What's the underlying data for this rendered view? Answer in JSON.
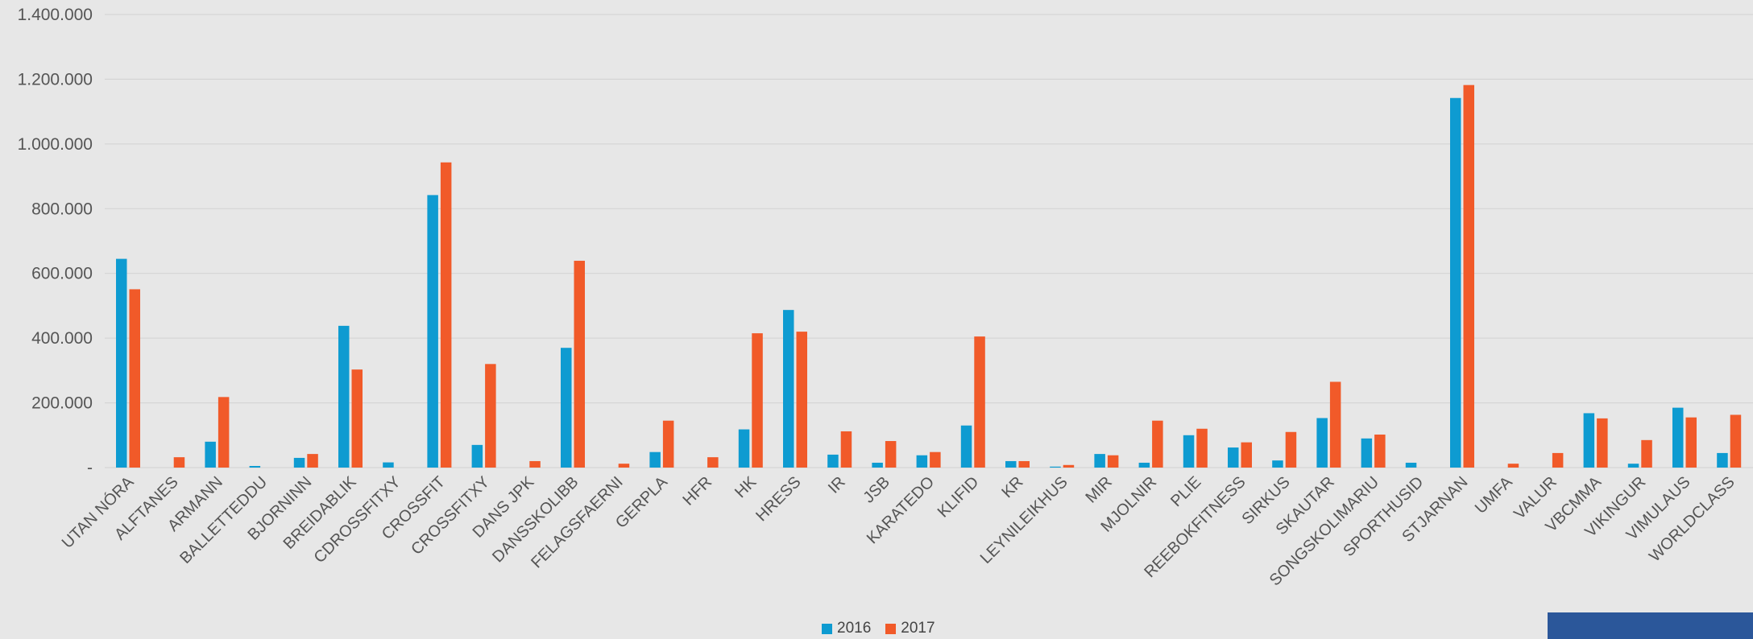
{
  "colors": {
    "background": "#e7e7e7",
    "series_2016": "#0e9bd1",
    "series_2017": "#f15a29",
    "gridline": "#d2d2d2",
    "text": "#555555",
    "corner_box": "#2b579a"
  },
  "chart_data": {
    "type": "bar",
    "title": "",
    "xlabel": "",
    "ylabel": "",
    "ylim": [
      0,
      1400000
    ],
    "y_ticks": [
      0,
      200000,
      400000,
      600000,
      800000,
      1000000,
      1200000,
      1400000
    ],
    "y_tick_labels": [
      "-",
      "200.000",
      "400.000",
      "600.000",
      "800.000",
      "1.000.000",
      "1.200.000",
      "1.400.000"
    ],
    "grid": true,
    "legend_position": "bottom",
    "categories": [
      "UTAN NÓRA",
      "ALFTANES",
      "ARMANN",
      "BALLETTEDDU",
      "BJORNINN",
      "BREIDABLIK",
      "CDROSSFITXY",
      "CROSSFIT",
      "CROSSFITXY",
      "DANS JPK",
      "DANSSKOLIBB",
      "FELAGSFAERNI",
      "GERPLA",
      "HFR",
      "HK",
      "HRESS",
      "IR",
      "JSB",
      "KARATEDO",
      "KLIFID",
      "KR",
      "LEYNILEIKHUS",
      "MIR",
      "MJOLNIR",
      "PLIE",
      "REEBOKFITNESS",
      "SIRKUS",
      "SKAUTAR",
      "SONGSKOLIMARIU",
      "SPORTHUSID",
      "STJARNAN",
      "UMFA",
      "VALUR",
      "VBCMMA",
      "VIKINGUR",
      "VIMULAUS",
      "WORLDCLASS"
    ],
    "series": [
      {
        "name": "2016",
        "values": [
          645000,
          0,
          80000,
          5000,
          30000,
          438000,
          16000,
          842000,
          70000,
          0,
          370000,
          0,
          48000,
          0,
          118000,
          487000,
          40000,
          15000,
          38000,
          130000,
          20000,
          3000,
          42000,
          15000,
          100000,
          62000,
          22000,
          153000,
          90000,
          15000,
          1142000,
          0,
          0,
          168000,
          12000,
          185000,
          45000
        ]
      },
      {
        "name": "2017",
        "values": [
          551000,
          32000,
          218000,
          0,
          42000,
          303000,
          0,
          943000,
          320000,
          20000,
          639000,
          12000,
          145000,
          32000,
          415000,
          420000,
          112000,
          82000,
          48000,
          405000,
          20000,
          8000,
          38000,
          145000,
          120000,
          78000,
          110000,
          265000,
          102000,
          0,
          1182000,
          12000,
          45000,
          152000,
          85000,
          155000,
          163000
        ]
      }
    ]
  }
}
